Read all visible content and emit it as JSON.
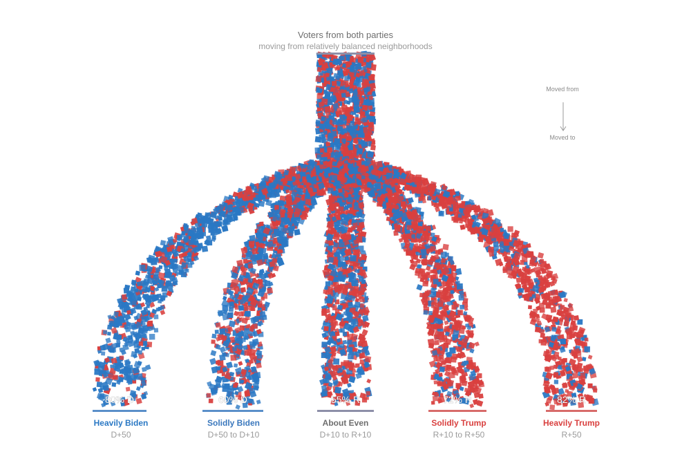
{
  "title": "Voters from both parties",
  "subtitle": "moving from relatively balanced neighborhoods",
  "legend": {
    "from": "Moved from",
    "to": "Moved to"
  },
  "colors": {
    "dem": "#2a78c4",
    "rep": "#d9403f",
    "neutral": "#6e6e6e"
  },
  "chart_data": {
    "type": "flow",
    "source": "About Even neighborhoods",
    "destinations": [
      {
        "label": "Heavily Biden",
        "range": "D+50",
        "share_text": "80% D",
        "share": 0.8,
        "party": "D",
        "color": "#2a78c4"
      },
      {
        "label": "Solidly Biden",
        "range": "D+50 to D+10",
        "share_text": "60% D",
        "share": 0.6,
        "party": "D",
        "color": "#3b78bd"
      },
      {
        "label": "About Even",
        "range": "D+10 to R+10",
        "share_text": "55% R",
        "share": 0.55,
        "party": "R",
        "color": "#6e6e6e"
      },
      {
        "label": "Solidly Trump",
        "range": "R+10 to R+50",
        "share_text": "72% R",
        "share": 0.72,
        "party": "R",
        "color": "#d9403f"
      },
      {
        "label": "Heavily Trump",
        "range": "R+50",
        "share_text": "82% R",
        "share": 0.82,
        "party": "R",
        "color": "#d9403f"
      }
    ]
  }
}
